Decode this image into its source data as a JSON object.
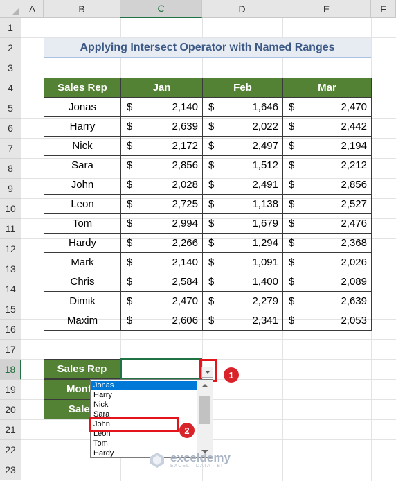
{
  "columns": [
    "A",
    "B",
    "C",
    "D",
    "E",
    "F"
  ],
  "selected_column": "C",
  "rows": [
    "1",
    "2",
    "3",
    "4",
    "5",
    "6",
    "7",
    "8",
    "9",
    "10",
    "11",
    "12",
    "13",
    "14",
    "15",
    "16",
    "17",
    "18",
    "19",
    "20",
    "21",
    "22",
    "23"
  ],
  "selected_row": "18",
  "title": "Applying Intersect Operator with Named Ranges",
  "table": {
    "headers": [
      "Sales Rep",
      "Jan",
      "Feb",
      "Mar"
    ],
    "currency": "$",
    "rows": [
      {
        "name": "Jonas",
        "jan": "2,140",
        "feb": "1,646",
        "mar": "2,470"
      },
      {
        "name": "Harry",
        "jan": "2,639",
        "feb": "2,022",
        "mar": "2,442"
      },
      {
        "name": "Nick",
        "jan": "2,172",
        "feb": "2,497",
        "mar": "2,194"
      },
      {
        "name": "Sara",
        "jan": "2,856",
        "feb": "1,512",
        "mar": "2,212"
      },
      {
        "name": "John",
        "jan": "2,028",
        "feb": "2,491",
        "mar": "2,856"
      },
      {
        "name": "Leon",
        "jan": "2,725",
        "feb": "1,138",
        "mar": "2,527"
      },
      {
        "name": "Tom",
        "jan": "2,994",
        "feb": "1,679",
        "mar": "2,476"
      },
      {
        "name": "Hardy",
        "jan": "2,266",
        "feb": "1,294",
        "mar": "2,368"
      },
      {
        "name": "Mark",
        "jan": "2,140",
        "feb": "1,091",
        "mar": "2,026"
      },
      {
        "name": "Chris",
        "jan": "2,584",
        "feb": "1,400",
        "mar": "2,089"
      },
      {
        "name": "Dimik",
        "jan": "2,470",
        "feb": "2,279",
        "mar": "2,639"
      },
      {
        "name": "Maxim",
        "jan": "2,606",
        "feb": "2,341",
        "mar": "2,053"
      }
    ]
  },
  "lookup_labels": [
    "Sales Rep",
    "Month",
    "Sales"
  ],
  "dropdown": {
    "items": [
      "Jonas",
      "Harry",
      "Nick",
      "Sara",
      "John",
      "Leon",
      "Tom",
      "Hardy"
    ],
    "highlighted": "Jonas"
  },
  "callouts": [
    "1",
    "2"
  ],
  "watermark": {
    "name": "exceldemy",
    "tagline": "EXCEL · DATA · BI"
  },
  "colors": {
    "header_green": "#548235",
    "title_fill": "#e7ebf2",
    "title_text": "#3d5a86",
    "callout_red": "#e3141c",
    "highlight_blue": "#0078d7"
  }
}
